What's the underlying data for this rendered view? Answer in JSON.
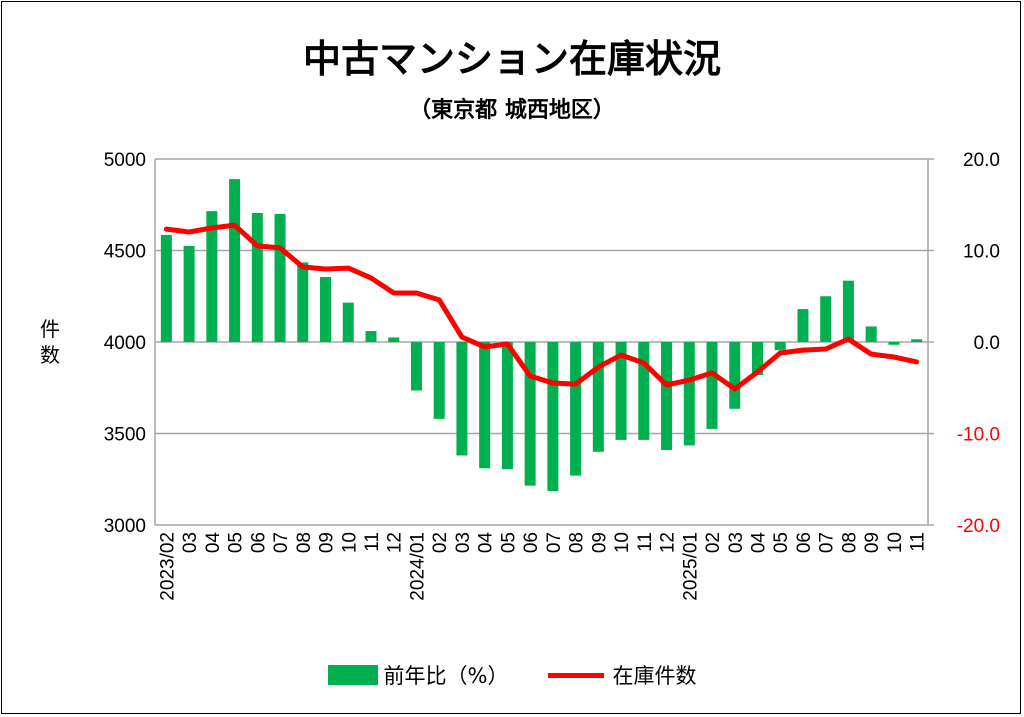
{
  "chart_data": {
    "type": "bar+line",
    "title": "中古マンション在庫状況",
    "subtitle": "（東京都 城西地区）",
    "ylabel": "件数",
    "ylabel_chars": [
      "件",
      "数"
    ],
    "left_axis": {
      "range": [
        3000,
        5000
      ],
      "ticks": [
        "5000",
        "4500",
        "4000",
        "3500",
        "3000"
      ],
      "tick_values": [
        5000,
        4500,
        4000,
        3500,
        3000
      ]
    },
    "right_axis": {
      "range": [
        -20,
        20
      ],
      "ticks": [
        "20.0",
        "10.0",
        "0.0",
        "-10.0",
        "-20.0"
      ],
      "tick_values": [
        20,
        10,
        0,
        -10,
        -20
      ]
    },
    "grid": true,
    "categories": [
      "2023/02",
      "03",
      "04",
      "05",
      "06",
      "07",
      "08",
      "09",
      "10",
      "11",
      "12",
      "2024/01",
      "02",
      "03",
      "04",
      "05",
      "06",
      "07",
      "08",
      "09",
      "10",
      "11",
      "12",
      "2025/01",
      "02",
      "03",
      "04",
      "05",
      "06",
      "07",
      "08",
      "09",
      "10",
      "11"
    ],
    "series": [
      {
        "name": "前年比（%）",
        "type": "bar",
        "axis": "right",
        "color": "#00b050",
        "values": [
          11.7,
          10.5,
          14.3,
          17.8,
          14.1,
          14.0,
          8.7,
          7.1,
          4.3,
          1.2,
          0.5,
          -5.3,
          -8.4,
          -12.4,
          -13.8,
          -13.9,
          -15.7,
          -16.3,
          -14.6,
          -12.0,
          -10.7,
          -10.7,
          -11.8,
          -11.3,
          -9.5,
          -7.3,
          -3.6,
          -0.9,
          3.6,
          5.0,
          6.7,
          1.7,
          -0.3,
          0.3
        ]
      },
      {
        "name": "在庫件数",
        "type": "line",
        "axis": "left",
        "color": "#ff0000",
        "values": [
          4617,
          4601,
          4623,
          4639,
          4525,
          4514,
          4410,
          4399,
          4404,
          4350,
          4268,
          4268,
          4230,
          4027,
          3973,
          3989,
          3814,
          3776,
          3770,
          3863,
          3929,
          3885,
          3765,
          3792,
          3831,
          3743,
          3836,
          3940,
          3956,
          3962,
          4016,
          3934,
          3918,
          3891
        ]
      }
    ],
    "legend_position": "bottom"
  },
  "colors": {
    "negative_tick": "#ff0000",
    "grid": "#a6a6a6"
  }
}
